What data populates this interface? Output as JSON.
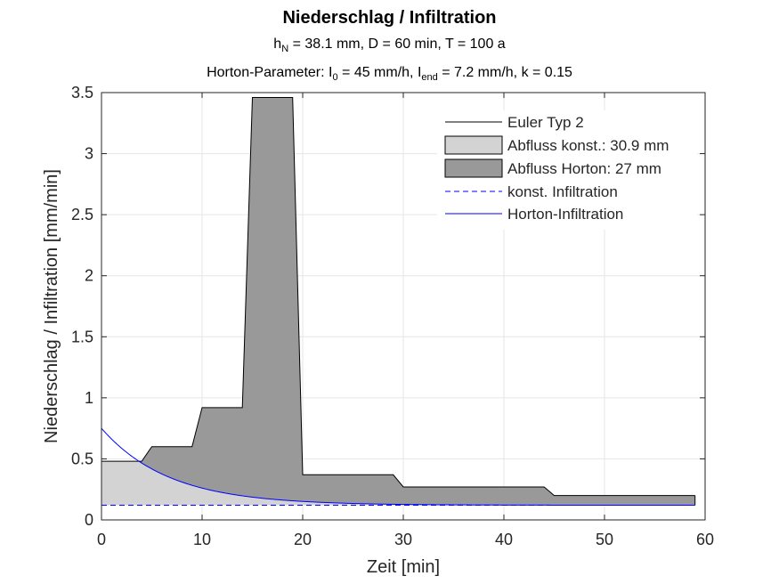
{
  "chart_data": {
    "type": "area",
    "title": "Niederschlag / Infiltration",
    "subtitle_1": {
      "pre": "h",
      "sub": "N",
      "post": " = 38.1 mm, D = 60 min, T = 100 a"
    },
    "subtitle_2": {
      "pre": "Horton-Parameter: I",
      "sub0": "0",
      "mid": " = 45 mm/h, I",
      "sub1": "end",
      "post": " = 7.2 mm/h, k = 0.15"
    },
    "xlabel": "Zeit [min]",
    "ylabel": "Niederschlag / Infiltration [mm/min]",
    "xlim": [
      0,
      60
    ],
    "ylim": [
      0,
      3.5
    ],
    "xticks": [
      0,
      10,
      20,
      30,
      40,
      50,
      60
    ],
    "yticks": [
      0,
      0.5,
      1,
      1.5,
      2,
      2.5,
      3,
      3.5
    ],
    "xtick_labels": [
      "0",
      "10",
      "20",
      "30",
      "40",
      "50",
      "60"
    ],
    "ytick_labels": [
      "0",
      "0.5",
      "1",
      "1.5",
      "2",
      "2.5",
      "3",
      "3.5"
    ],
    "grid": true,
    "legend_position": "top-right",
    "rain_euler_typ2": [
      [
        0,
        0.48
      ],
      [
        4,
        0.48
      ],
      [
        5,
        0.6
      ],
      [
        9,
        0.6
      ],
      [
        10,
        0.92
      ],
      [
        14,
        0.92
      ],
      [
        15,
        3.46
      ],
      [
        19,
        3.46
      ],
      [
        20,
        0.37
      ],
      [
        29,
        0.37
      ],
      [
        30,
        0.27
      ],
      [
        44,
        0.27
      ],
      [
        45,
        0.2
      ],
      [
        59,
        0.2
      ]
    ],
    "horton": {
      "i0": 0.75,
      "iend": 0.12,
      "k": 0.15
    },
    "konst_infiltration": 0.12,
    "series": [
      {
        "name": "Euler Typ 2",
        "color": "#000000",
        "style": "line"
      },
      {
        "name": "Abfluss konst.: 30.9 mm",
        "color": "#d3d3d3",
        "style": "fill"
      },
      {
        "name": "Abfluss Horton: 27 mm",
        "color": "#999999",
        "style": "fill"
      },
      {
        "name": "konst. Infiltration",
        "color": "#0000ff",
        "style": "dashed"
      },
      {
        "name": "Horton-Infiltration",
        "color": "#0000ff",
        "style": "line"
      }
    ]
  }
}
